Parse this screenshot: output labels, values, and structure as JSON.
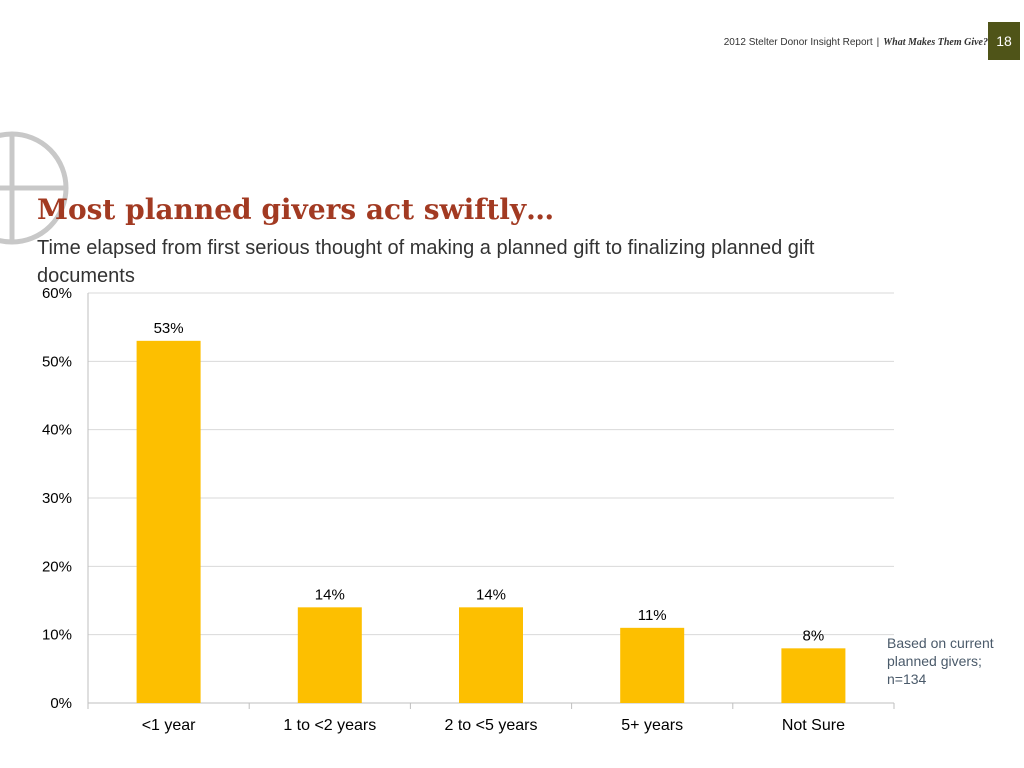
{
  "header": {
    "report": "2012 Stelter Donor Insight Report",
    "separator": "|",
    "tagline": "What Makes Them Give?",
    "page_number": "18"
  },
  "slide": {
    "title": "Most planned givers act swiftly…",
    "subtitle": "Time elapsed from first serious thought of making a planned gift to finalizing planned gift documents",
    "note": "Based on current planned givers; n=134"
  },
  "colors": {
    "bar": "#fdbf00",
    "title": "#a23a22",
    "badge": "#4f5418",
    "grid": "#d9d9d9",
    "logo": "#c8c8c8"
  },
  "chart_data": {
    "type": "bar",
    "title": "",
    "xlabel": "",
    "ylabel": "",
    "categories": [
      "<1 year",
      "1 to <2 years",
      "2 to <5 years",
      "5+ years",
      "Not Sure"
    ],
    "values": [
      53,
      14,
      14,
      11,
      8
    ],
    "data_labels": [
      "53%",
      "14%",
      "14%",
      "11%",
      "8%"
    ],
    "ylim": [
      0,
      60
    ],
    "yticks": [
      0,
      10,
      20,
      30,
      40,
      50,
      60
    ],
    "ytick_labels": [
      "0%",
      "10%",
      "20%",
      "30%",
      "40%",
      "50%",
      "60%"
    ],
    "grid": true,
    "legend": "none"
  }
}
